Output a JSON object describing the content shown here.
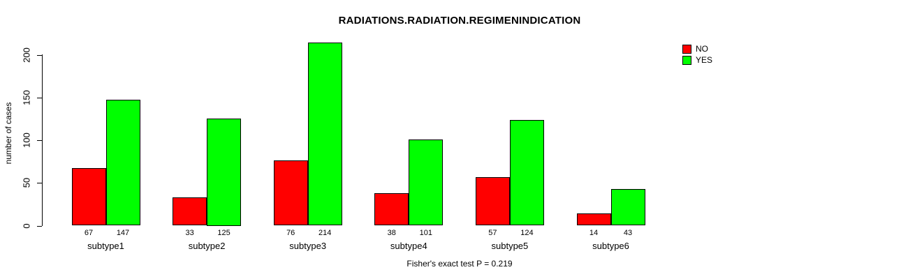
{
  "chart_data": {
    "type": "bar",
    "title": "RADIATIONS.RADIATION.REGIMENINDICATION",
    "ylabel": "number of cases",
    "xlabel": "",
    "footer": "Fisher's exact test P = 0.219",
    "categories": [
      "subtype1",
      "subtype2",
      "subtype3",
      "subtype4",
      "subtype5",
      "subtype6"
    ],
    "series": [
      {
        "name": "NO",
        "color": "#ff0000",
        "values": [
          67,
          33,
          76,
          38,
          57,
          14
        ]
      },
      {
        "name": "YES",
        "color": "#00ff00",
        "values": [
          147,
          125,
          214,
          101,
          124,
          43
        ]
      }
    ],
    "yticks": [
      0,
      50,
      100,
      150,
      200
    ],
    "ylim": [
      0,
      200
    ],
    "grid": false,
    "legend_position": "top-right",
    "bar_value_labels": true,
    "colors": {
      "axis": "#000000",
      "text": "#000000",
      "background": "#ffffff"
    }
  }
}
